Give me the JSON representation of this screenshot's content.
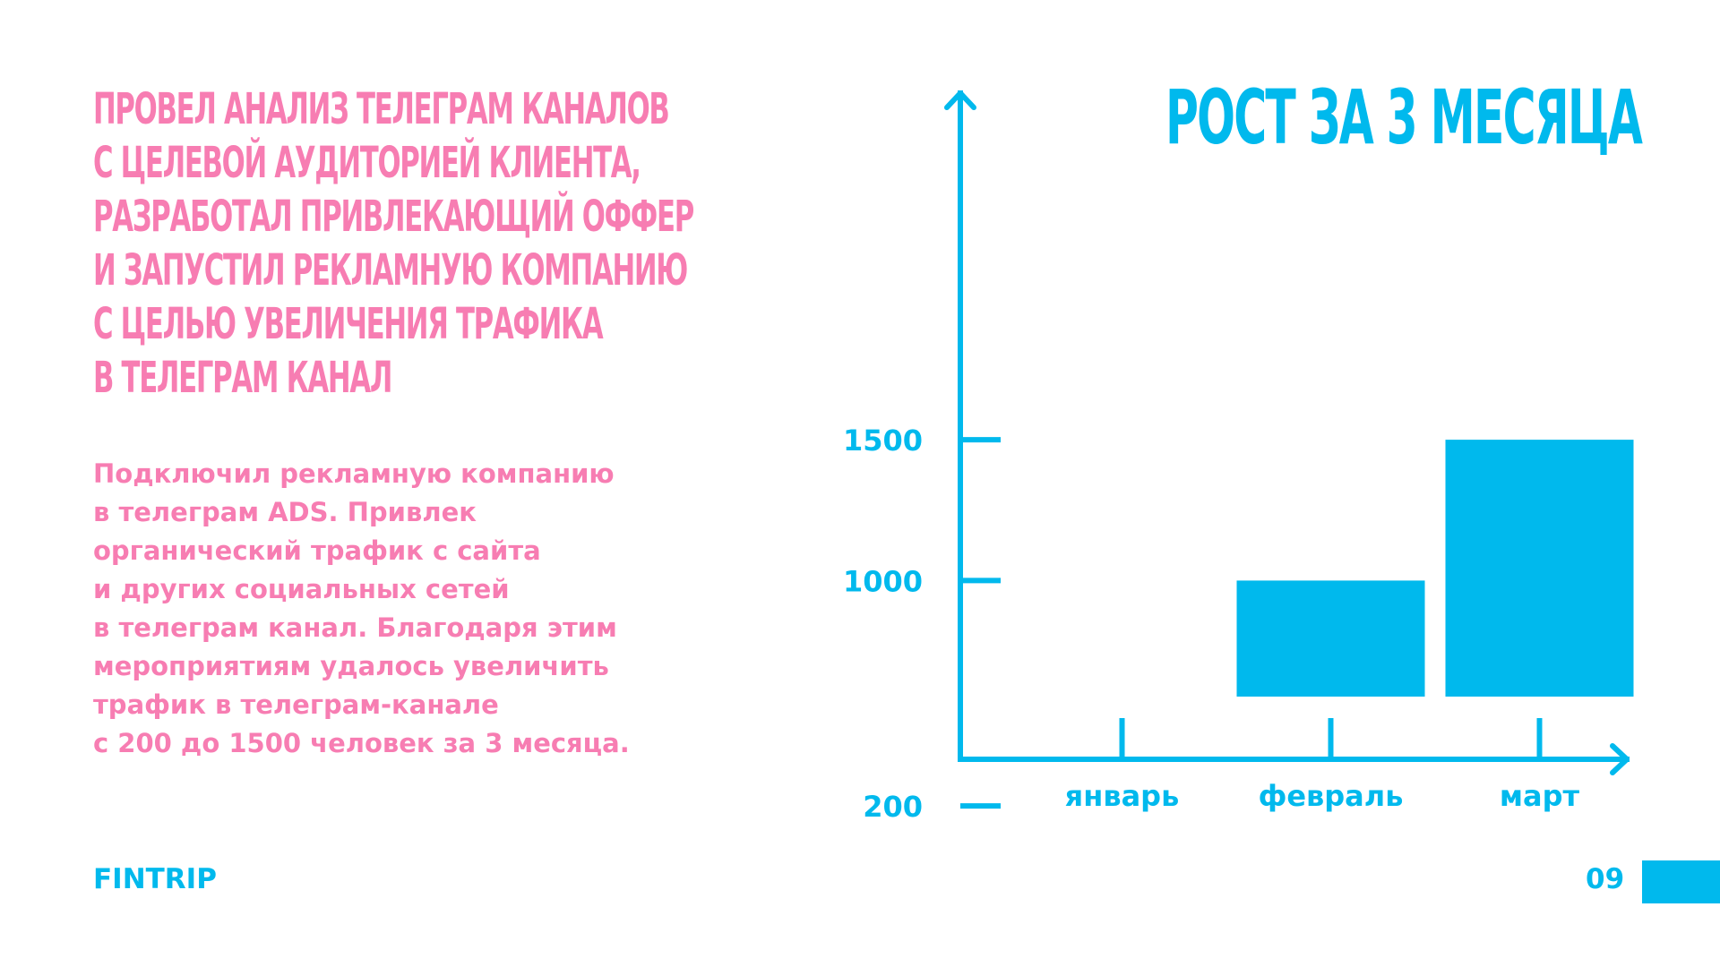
{
  "slide": {
    "headline_lines": [
      "ПРОВЕЛ АНАЛИЗ ТЕЛЕГРАМ КАНАЛОВ",
      "С ЦЕЛЕВОЙ АУДИТОРИЕЙ КЛИЕНТА,",
      "РАЗРАБОТАЛ ПРИВЛЕКАЮЩИЙ ОФФЕР",
      "И ЗАПУСТИЛ РЕКЛАМНУЮ КОМПАНИЮ",
      "С ЦЕЛЬЮ УВЕЛИЧЕНИЯ ТРАФИКА",
      "В ТЕЛЕГРАМ КАНАЛ"
    ],
    "body_lines": [
      "Подключил рекламную компанию",
      "в телеграм ADS. Привлек",
      "органический трафик с сайта",
      "и других социальных сетей",
      "в телеграм канал. Благодаря этим",
      "мероприятиям удалось увеличить",
      "трафик в телеграм-канале",
      "с 200 до 1500 человек за 3 месяца."
    ],
    "brand": "FINTRIP",
    "page_number": "09"
  },
  "colors": {
    "accent": "#00b9ed",
    "text_pink": "#f77db2",
    "background": "#ffffff"
  },
  "chart_data": {
    "type": "bar",
    "title": "РОСТ ЗА 3 МЕСЯЦА",
    "categories": [
      "январь",
      "февраль",
      "март"
    ],
    "values": [
      200,
      1000,
      1500
    ],
    "y_ticks": [
      {
        "value": 200,
        "label": "200"
      },
      {
        "value": 1000,
        "label": "1000"
      },
      {
        "value": 1500,
        "label": "1500"
      }
    ],
    "grid": false,
    "legend": "none"
  }
}
